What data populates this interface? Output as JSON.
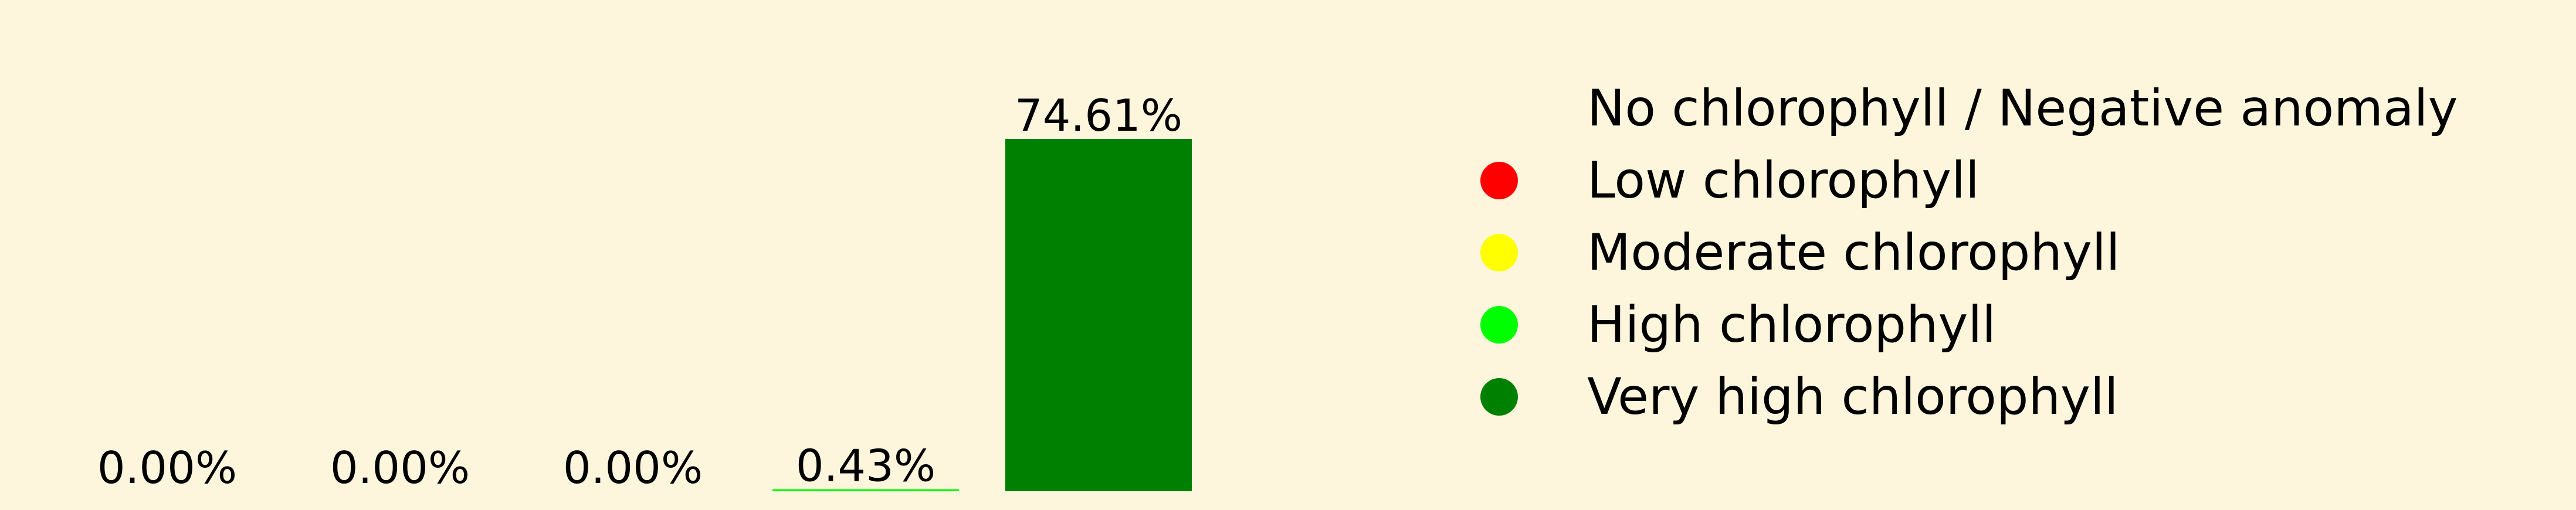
{
  "chart_data": {
    "type": "bar",
    "categories": [
      "No chlorophyll / Negative anomaly",
      "Low chlorophyll",
      "Moderate chlorophyll",
      "High chlorophyll",
      "Very high chlorophyll"
    ],
    "values": [
      0.0,
      0.0,
      0.0,
      0.43,
      74.61
    ],
    "value_labels": [
      "0.00%",
      "0.00%",
      "0.00%",
      "0.43%",
      "74.61%"
    ],
    "colors": [
      "#fdf6dc",
      "#ff0000",
      "#ffff00",
      "#00ff00",
      "#008000"
    ],
    "title": "",
    "xlabel": "",
    "ylabel": "",
    "ylim": [
      0,
      74.61
    ],
    "grid": false,
    "axes_visible": false,
    "legend": {
      "placement": "right",
      "entries": [
        {
          "label": "No chlorophyll / Negative anomaly",
          "color": "#fdf6dc"
        },
        {
          "label": "Low chlorophyll",
          "color": "#ff0000"
        },
        {
          "label": "Moderate chlorophyll",
          "color": "#ffff00"
        },
        {
          "label": "High chlorophyll",
          "color": "#00ff00"
        },
        {
          "label": "Very high chlorophyll",
          "color": "#008000"
        }
      ]
    }
  }
}
